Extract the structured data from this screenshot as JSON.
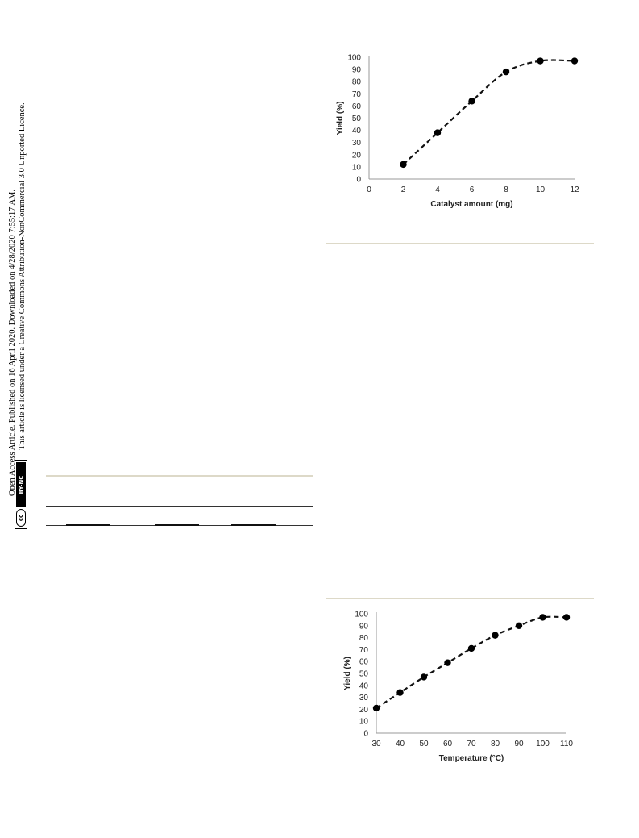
{
  "license": {
    "line1": "Open Access Article. Published on 16 April 2020. Downloaded on 4/28/2020 7:55:17 AM.",
    "line2": "This article is licensed under a Creative Commons Attribution-NonCommercial 3.0 Unported Licence.",
    "badge_cc": "cc",
    "badge_by_nc": "BY-NC"
  },
  "chart_data": [
    {
      "type": "line",
      "title": "",
      "xlabel": "Catalyst amount (mg)",
      "ylabel": "Yield (%)",
      "xlim": [
        0,
        12
      ],
      "ylim": [
        0,
        100
      ],
      "x_ticks": [
        0,
        2,
        4,
        6,
        8,
        10,
        12
      ],
      "y_ticks": [
        0,
        10,
        20,
        30,
        40,
        50,
        60,
        70,
        80,
        90,
        100
      ],
      "grid": false,
      "series": [
        {
          "x": [
            2,
            4,
            6,
            8,
            10,
            12
          ],
          "y": [
            12,
            38,
            64,
            88,
            97,
            97
          ]
        }
      ]
    },
    {
      "type": "line",
      "title": "",
      "xlabel": "Temperature (°C)",
      "ylabel": "Yield (%)",
      "xlim": [
        30,
        110
      ],
      "ylim": [
        0,
        100
      ],
      "x_ticks": [
        30,
        40,
        50,
        60,
        70,
        80,
        90,
        100,
        110
      ],
      "y_ticks": [
        0,
        10,
        20,
        30,
        40,
        50,
        60,
        70,
        80,
        90,
        100
      ],
      "grid": false,
      "series": [
        {
          "x": [
            30,
            40,
            50,
            60,
            70,
            80,
            90,
            100,
            110
          ],
          "y": [
            21,
            34,
            47,
            59,
            71,
            82,
            90,
            97,
            97
          ]
        }
      ]
    }
  ]
}
